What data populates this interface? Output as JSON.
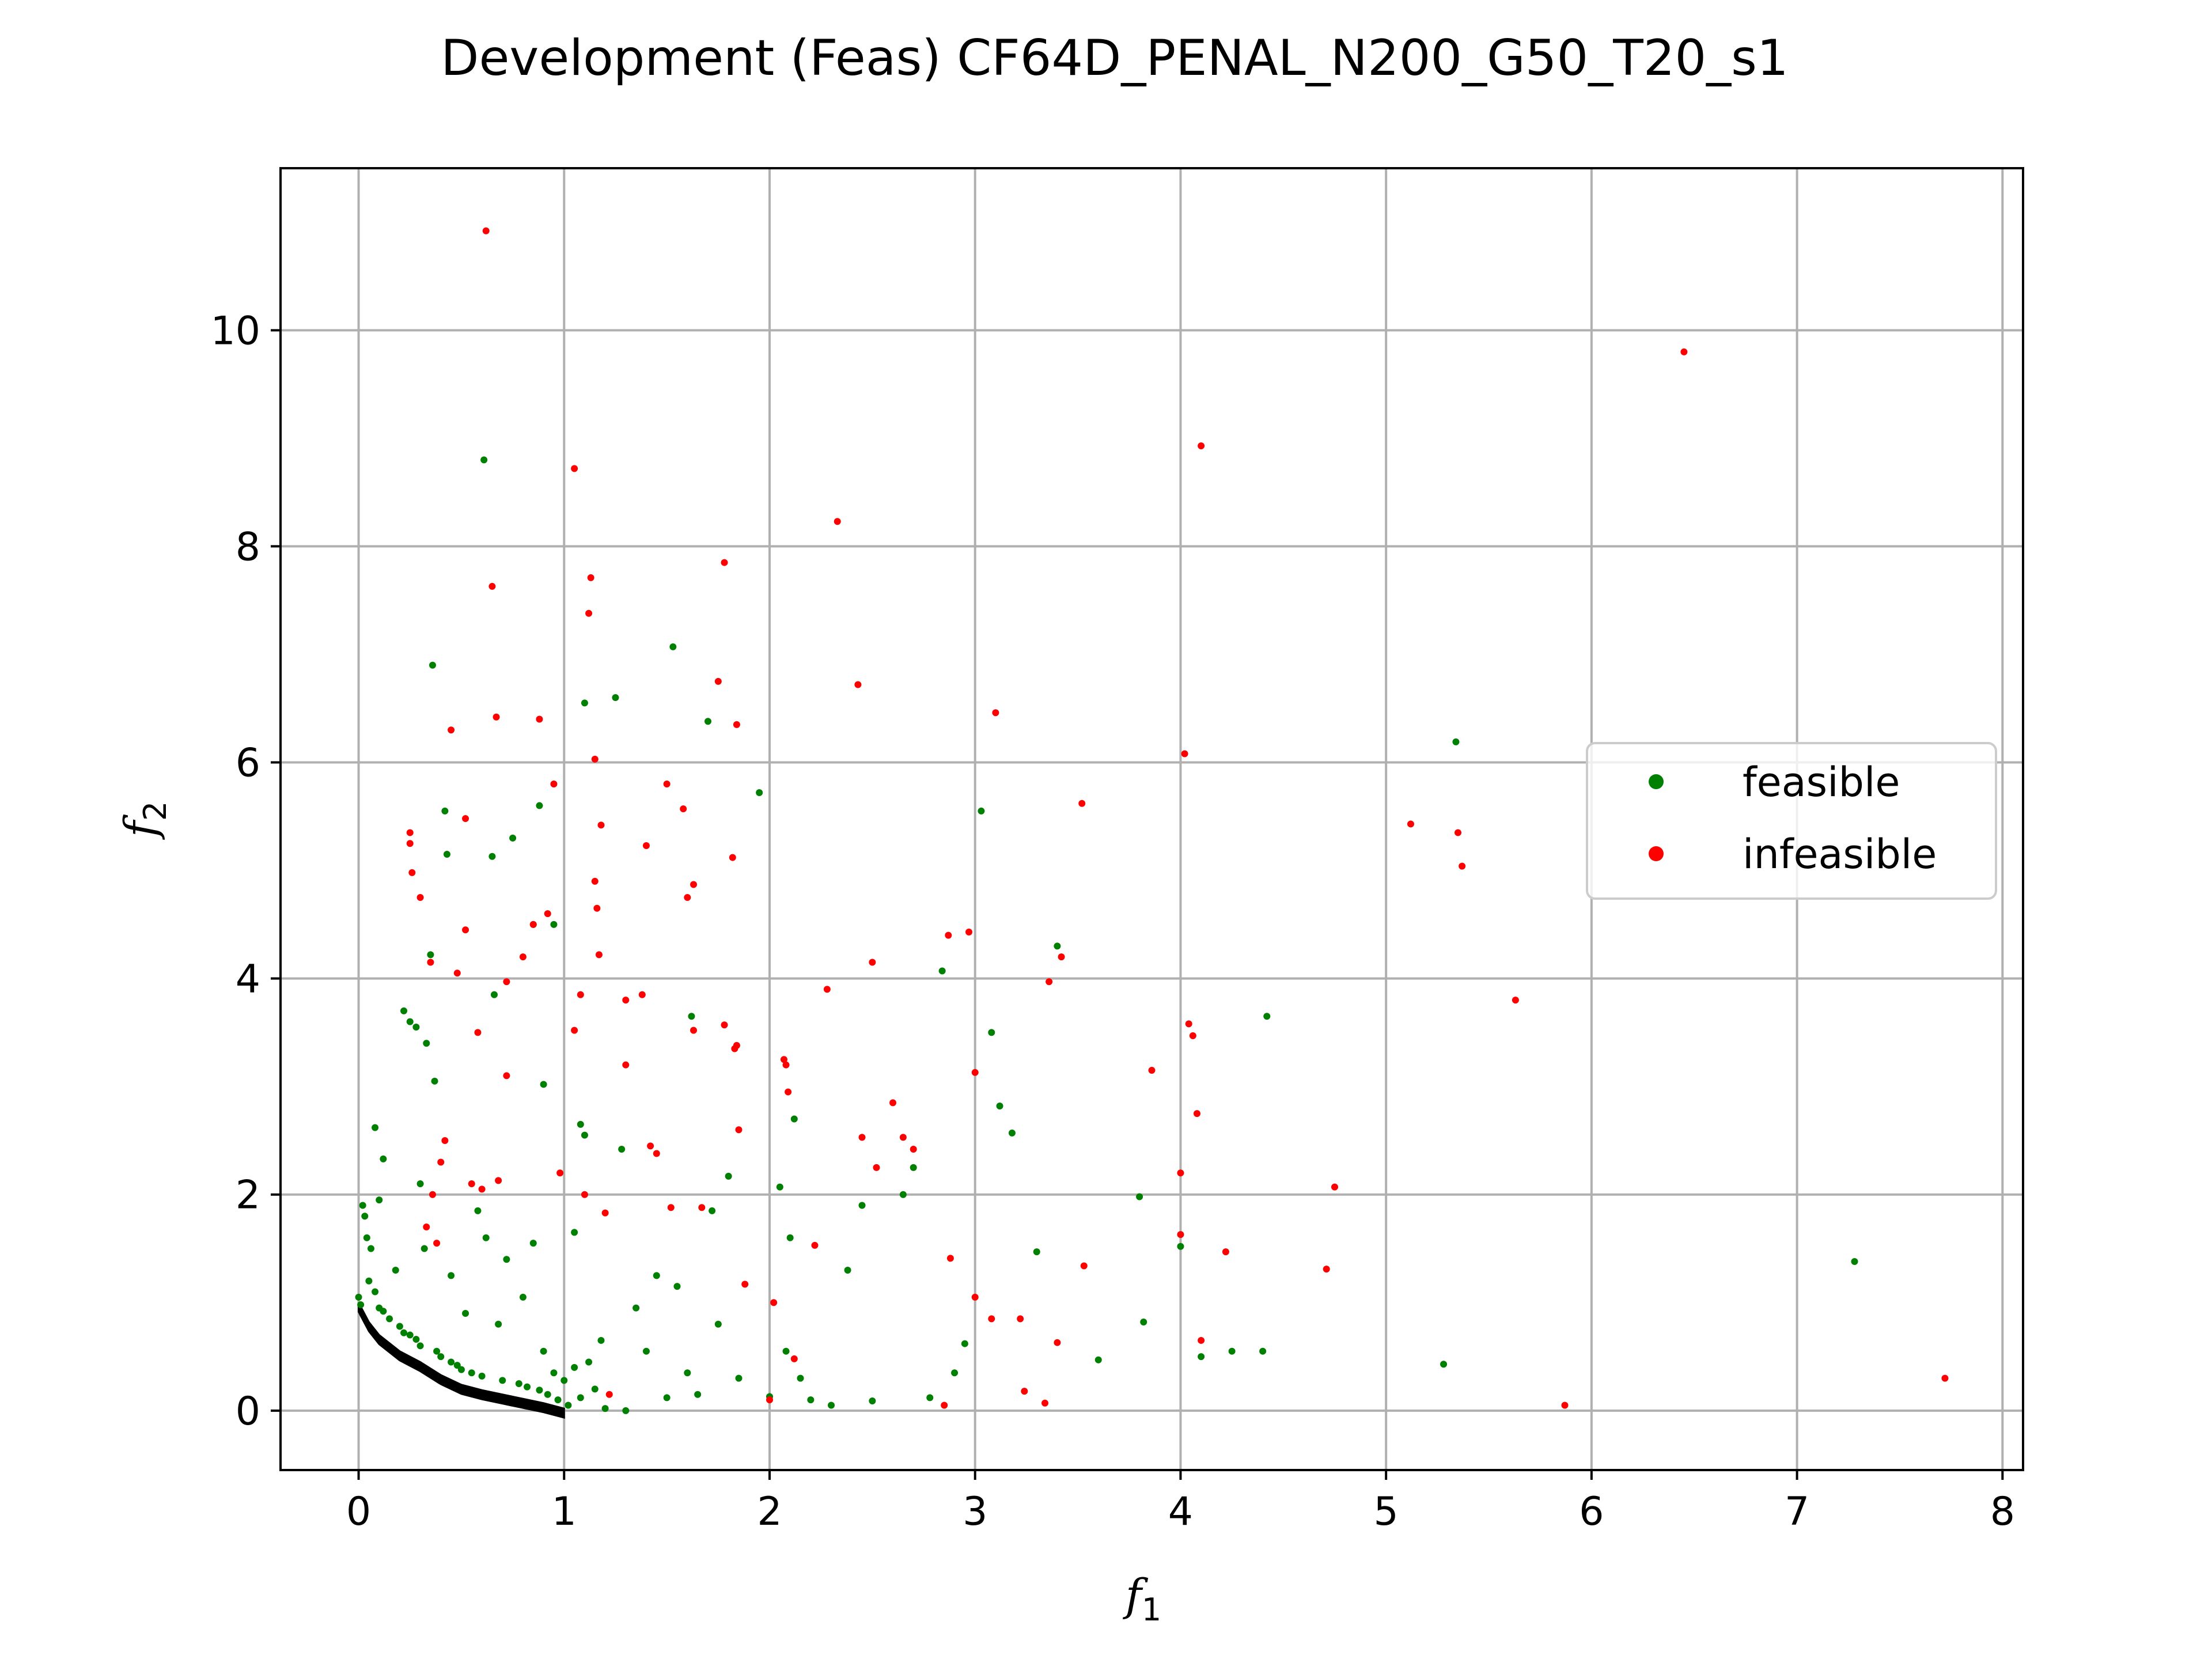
{
  "chart_data": {
    "type": "scatter",
    "title": "Development (Feas) CF64D_PENAL_N200_G50_T20_s1",
    "xlabel": "f",
    "xlabel_sub": "1",
    "ylabel": "f",
    "ylabel_sub": "2",
    "xlim": [
      -0.38,
      8.1
    ],
    "ylim": [
      -0.55,
      11.5
    ],
    "x_ticks": [
      0,
      1,
      2,
      3,
      4,
      5,
      6,
      7,
      8
    ],
    "y_ticks": [
      0,
      2,
      4,
      6,
      8,
      10
    ],
    "grid": true,
    "legend_position": "center-right",
    "colors": {
      "feasible": "#008000",
      "infeasible": "#ff0000",
      "front": "#000000"
    },
    "front": {
      "x": [
        0.0,
        0.05,
        0.1,
        0.2,
        0.3,
        0.4,
        0.5,
        0.6,
        0.7,
        0.8,
        0.9,
        1.0
      ],
      "y": [
        1.0,
        0.82,
        0.7,
        0.55,
        0.45,
        0.33,
        0.24,
        0.19,
        0.15,
        0.11,
        0.07,
        0.02
      ]
    },
    "series": [
      {
        "name": "feasible",
        "color": "#008000",
        "points": [
          [
            0.0,
            1.05
          ],
          [
            0.01,
            0.98
          ],
          [
            0.02,
            1.9
          ],
          [
            0.03,
            1.8
          ],
          [
            0.04,
            1.6
          ],
          [
            0.05,
            1.2
          ],
          [
            0.06,
            1.5
          ],
          [
            0.08,
            1.1
          ],
          [
            0.1,
            0.95
          ],
          [
            0.12,
            0.92
          ],
          [
            0.08,
            2.62
          ],
          [
            0.12,
            2.33
          ],
          [
            0.1,
            1.95
          ],
          [
            0.15,
            0.85
          ],
          [
            0.18,
            1.3
          ],
          [
            0.2,
            0.78
          ],
          [
            0.22,
            0.72
          ],
          [
            0.25,
            0.7
          ],
          [
            0.28,
            0.66
          ],
          [
            0.3,
            0.6
          ],
          [
            0.22,
            3.7
          ],
          [
            0.25,
            3.6
          ],
          [
            0.28,
            3.55
          ],
          [
            0.3,
            2.1
          ],
          [
            0.32,
            1.5
          ],
          [
            0.33,
            3.4
          ],
          [
            0.35,
            4.22
          ],
          [
            0.36,
            6.9
          ],
          [
            0.37,
            3.05
          ],
          [
            0.38,
            0.55
          ],
          [
            0.4,
            0.5
          ],
          [
            0.42,
            5.55
          ],
          [
            0.43,
            5.15
          ],
          [
            0.45,
            1.25
          ],
          [
            0.45,
            0.45
          ],
          [
            0.48,
            0.42
          ],
          [
            0.5,
            0.38
          ],
          [
            0.52,
            0.9
          ],
          [
            0.55,
            0.35
          ],
          [
            0.58,
            1.85
          ],
          [
            0.6,
            0.32
          ],
          [
            0.61,
            8.8
          ],
          [
            0.62,
            1.6
          ],
          [
            0.65,
            5.13
          ],
          [
            0.66,
            3.85
          ],
          [
            0.68,
            0.8
          ],
          [
            0.7,
            0.28
          ],
          [
            0.72,
            1.4
          ],
          [
            0.75,
            5.3
          ],
          [
            0.78,
            0.25
          ],
          [
            0.8,
            1.05
          ],
          [
            0.82,
            0.22
          ],
          [
            0.85,
            4.5
          ],
          [
            0.85,
            1.55
          ],
          [
            0.88,
            5.6
          ],
          [
            0.88,
            0.19
          ],
          [
            0.9,
            3.02
          ],
          [
            0.9,
            0.55
          ],
          [
            0.92,
            0.15
          ],
          [
            0.95,
            4.5
          ],
          [
            0.95,
            0.35
          ],
          [
            0.97,
            0.1
          ],
          [
            1.0,
            0.28
          ],
          [
            1.02,
            0.05
          ],
          [
            1.05,
            0.4
          ],
          [
            1.05,
            1.65
          ],
          [
            1.08,
            2.65
          ],
          [
            1.08,
            0.12
          ],
          [
            1.1,
            6.55
          ],
          [
            1.1,
            2.55
          ],
          [
            1.12,
            0.45
          ],
          [
            1.15,
            0.2
          ],
          [
            1.18,
            0.65
          ],
          [
            1.2,
            0.02
          ],
          [
            1.25,
            6.6
          ],
          [
            1.28,
            2.42
          ],
          [
            1.3,
            0.0
          ],
          [
            1.35,
            0.95
          ],
          [
            1.4,
            0.55
          ],
          [
            1.45,
            1.25
          ],
          [
            1.5,
            0.12
          ],
          [
            1.53,
            7.07
          ],
          [
            1.55,
            1.15
          ],
          [
            1.6,
            0.35
          ],
          [
            1.62,
            3.65
          ],
          [
            1.65,
            0.15
          ],
          [
            1.7,
            6.38
          ],
          [
            1.72,
            1.85
          ],
          [
            1.75,
            0.8
          ],
          [
            1.8,
            2.17
          ],
          [
            1.85,
            0.3
          ],
          [
            1.95,
            5.72
          ],
          [
            2.0,
            0.13
          ],
          [
            2.05,
            2.07
          ],
          [
            2.08,
            0.55
          ],
          [
            2.1,
            1.6
          ],
          [
            2.12,
            2.7
          ],
          [
            2.15,
            0.3
          ],
          [
            2.2,
            0.1
          ],
          [
            2.3,
            0.05
          ],
          [
            2.38,
            1.3
          ],
          [
            2.45,
            1.9
          ],
          [
            2.5,
            0.09
          ],
          [
            2.65,
            2.0
          ],
          [
            2.7,
            2.25
          ],
          [
            2.78,
            0.12
          ],
          [
            2.84,
            4.07
          ],
          [
            2.9,
            0.35
          ],
          [
            2.95,
            0.62
          ],
          [
            3.03,
            5.55
          ],
          [
            3.08,
            3.5
          ],
          [
            3.12,
            2.82
          ],
          [
            3.18,
            2.57
          ],
          [
            3.3,
            1.47
          ],
          [
            3.4,
            4.3
          ],
          [
            3.6,
            0.47
          ],
          [
            3.8,
            1.98
          ],
          [
            3.82,
            0.82
          ],
          [
            4.0,
            1.52
          ],
          [
            4.1,
            0.5
          ],
          [
            4.25,
            0.55
          ],
          [
            4.4,
            0.55
          ],
          [
            4.42,
            3.65
          ],
          [
            5.28,
            0.43
          ],
          [
            5.34,
            6.19
          ],
          [
            7.28,
            1.38
          ]
        ]
      },
      {
        "name": "infeasible",
        "color": "#ff0000",
        "points": [
          [
            0.25,
            5.35
          ],
          [
            0.25,
            5.25
          ],
          [
            0.26,
            4.98
          ],
          [
            0.3,
            4.75
          ],
          [
            0.33,
            1.7
          ],
          [
            0.35,
            4.15
          ],
          [
            0.36,
            2.0
          ],
          [
            0.38,
            1.55
          ],
          [
            0.4,
            2.3
          ],
          [
            0.42,
            2.5
          ],
          [
            0.45,
            6.3
          ],
          [
            0.48,
            4.05
          ],
          [
            0.52,
            4.45
          ],
          [
            0.52,
            5.48
          ],
          [
            0.55,
            2.1
          ],
          [
            0.58,
            3.5
          ],
          [
            0.6,
            2.05
          ],
          [
            0.62,
            10.92
          ],
          [
            0.65,
            7.63
          ],
          [
            0.67,
            6.42
          ],
          [
            0.68,
            2.13
          ],
          [
            0.72,
            3.1
          ],
          [
            0.72,
            3.97
          ],
          [
            0.8,
            4.2
          ],
          [
            0.85,
            4.5
          ],
          [
            0.88,
            6.4
          ],
          [
            0.92,
            4.6
          ],
          [
            0.95,
            5.8
          ],
          [
            0.98,
            2.2
          ],
          [
            1.05,
            8.72
          ],
          [
            1.05,
            3.52
          ],
          [
            1.08,
            3.85
          ],
          [
            1.1,
            2.0
          ],
          [
            1.12,
            7.38
          ],
          [
            1.13,
            7.71
          ],
          [
            1.15,
            6.03
          ],
          [
            1.15,
            4.9
          ],
          [
            1.16,
            4.65
          ],
          [
            1.17,
            4.22
          ],
          [
            1.18,
            5.42
          ],
          [
            1.2,
            1.83
          ],
          [
            1.22,
            0.15
          ],
          [
            1.3,
            3.2
          ],
          [
            1.3,
            3.8
          ],
          [
            1.38,
            3.85
          ],
          [
            1.4,
            5.23
          ],
          [
            1.42,
            2.45
          ],
          [
            1.45,
            2.38
          ],
          [
            1.5,
            5.8
          ],
          [
            1.52,
            1.88
          ],
          [
            1.58,
            5.57
          ],
          [
            1.6,
            4.75
          ],
          [
            1.63,
            4.87
          ],
          [
            1.63,
            3.52
          ],
          [
            1.67,
            1.88
          ],
          [
            1.75,
            6.75
          ],
          [
            1.78,
            7.85
          ],
          [
            1.78,
            3.57
          ],
          [
            1.82,
            5.12
          ],
          [
            1.83,
            3.35
          ],
          [
            1.84,
            6.35
          ],
          [
            1.84,
            3.38
          ],
          [
            1.85,
            2.6
          ],
          [
            1.88,
            1.17
          ],
          [
            2.0,
            0.1
          ],
          [
            2.02,
            1.0
          ],
          [
            2.07,
            3.25
          ],
          [
            2.08,
            3.2
          ],
          [
            2.09,
            2.95
          ],
          [
            2.12,
            0.48
          ],
          [
            2.22,
            1.53
          ],
          [
            2.28,
            3.9
          ],
          [
            2.33,
            8.23
          ],
          [
            2.43,
            6.72
          ],
          [
            2.45,
            2.53
          ],
          [
            2.5,
            4.15
          ],
          [
            2.52,
            2.25
          ],
          [
            2.6,
            2.85
          ],
          [
            2.65,
            2.53
          ],
          [
            2.7,
            2.42
          ],
          [
            2.85,
            0.05
          ],
          [
            2.87,
            4.4
          ],
          [
            2.88,
            1.41
          ],
          [
            2.97,
            4.43
          ],
          [
            3.0,
            3.13
          ],
          [
            3.0,
            1.05
          ],
          [
            3.08,
            0.85
          ],
          [
            3.1,
            6.46
          ],
          [
            3.22,
            0.85
          ],
          [
            3.24,
            0.18
          ],
          [
            3.34,
            0.07
          ],
          [
            3.36,
            3.97
          ],
          [
            3.4,
            0.63
          ],
          [
            3.42,
            4.2
          ],
          [
            3.52,
            5.62
          ],
          [
            3.53,
            1.34
          ],
          [
            3.86,
            3.15
          ],
          [
            4.0,
            1.63
          ],
          [
            4.0,
            2.2
          ],
          [
            4.02,
            6.08
          ],
          [
            4.04,
            3.58
          ],
          [
            4.06,
            3.47
          ],
          [
            4.08,
            2.75
          ],
          [
            4.1,
            8.93
          ],
          [
            4.1,
            0.65
          ],
          [
            4.22,
            1.47
          ],
          [
            4.71,
            1.31
          ],
          [
            4.75,
            2.07
          ],
          [
            5.12,
            5.43
          ],
          [
            5.35,
            5.35
          ],
          [
            5.37,
            5.04
          ],
          [
            5.63,
            3.8
          ],
          [
            5.87,
            0.05
          ],
          [
            6.45,
            9.8
          ],
          [
            7.72,
            0.3
          ]
        ]
      }
    ]
  }
}
